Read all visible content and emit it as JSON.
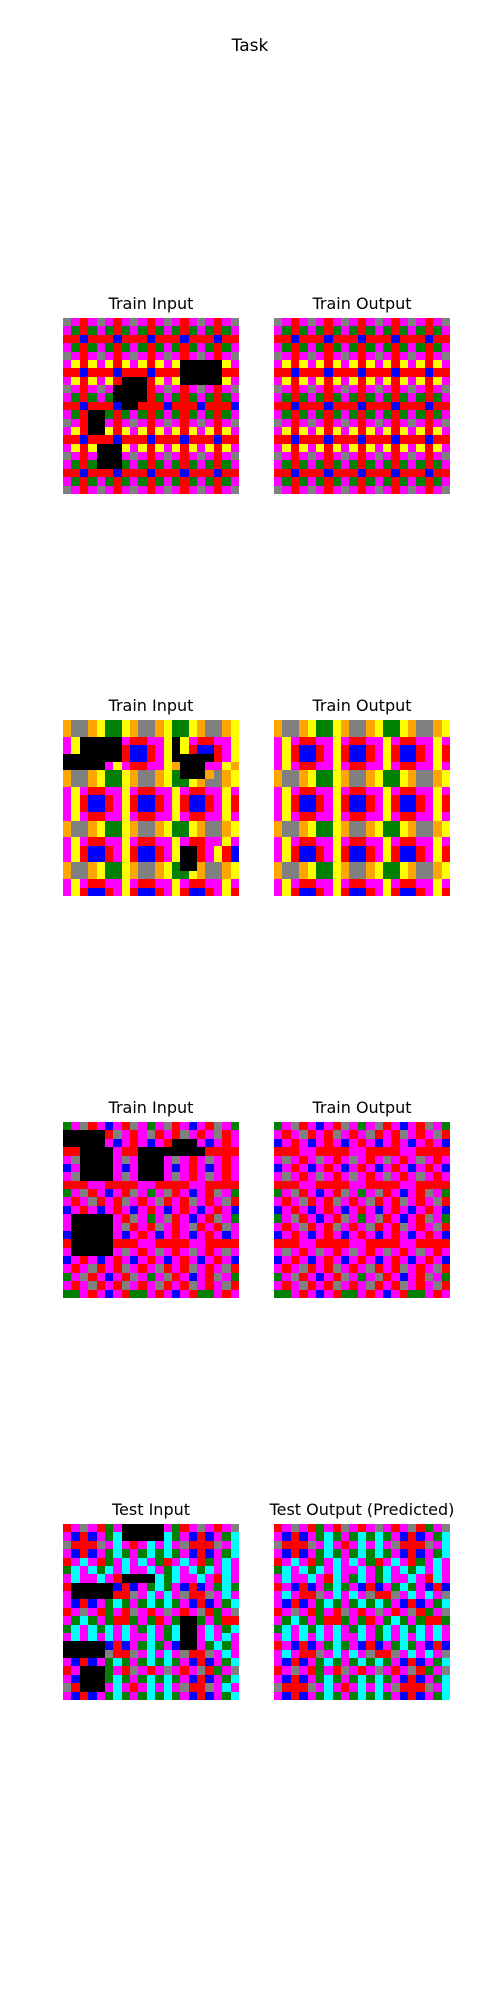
{
  "title": "Task",
  "palette": {
    "K": "#000000",
    "M": "#ff00ff",
    "R": "#ff0000",
    "G": "#008000",
    "B": "#0000ff",
    "Y": "#ffff00",
    "A": "#808080",
    "O": "#ffa500",
    "C": "#00ffff",
    "W": "#ffffff"
  },
  "panels": [
    {
      "label": "Train Input",
      "grid": [
        "AMRMAMRMAMRMAMRMAMRMA",
        "MGRGMGRGMGRGMGRGMGRGM",
        "RRBRRRBRRRBRRRBRRRBRR",
        "MGRGMGRGMGRGMGRGMGRGM",
        "AMRMAMRMAMRMAMRMAMRMA",
        "MYRYMYRYMYRYMYKKKKKYM",
        "RRBRRRBRRRBRRRKKKKKRR",
        "MYRYMYRKKKRYMYKKKKKYM",
        "AMRMAMKKKKRMAMRMAMRMA",
        "MGRGMGKKKKRGMGRGMGRGM",
        "RRBRRRBKKRRRBRRRBRRRB",
        "MGRKKGRGMGRGMGRGMGRGM",
        "AMRKKMRMAMRMAMRMAMRMA",
        "MYRKKYRYMYRYMYRYMYRYM",
        "RRBRRRBRRRBRRRBRRRBRR",
        "MYRYKKKYMYRYMYRYMYRYM",
        "AMRMKKKMAMRMAMRMAMRMA",
        "MGRGKKKGMGRGMGRGMGRGM",
        "RRBRRRBRRRBRRRBRRRBRR",
        "MGRGMGRGMGRGMGRGMGRGM",
        "AMRMAMRMAMRMAMRMAMRMA"
      ]
    },
    {
      "label": "Train Output",
      "grid": [
        "AMRMAMRMAMRMAMRMAMRMA",
        "MGRGMGRGMGRGMGRGMGRGM",
        "RRBRRRBRRRBRRRBRRRBRR",
        "MGRGMGRGMGRGMGRGMGRGM",
        "AMRMAMRMAMRMAMRMAMRMA",
        "MYRYMYRYMYRYMYRYMYRYM",
        "RRBRRRBRRRBRRRBRRRBRR",
        "MYRYMYRYMYRYMYRYMYRYM",
        "AMRMAMRMAMRMAMRMAMRMA",
        "MGRGMGRGMGRGMGRGMGRGM",
        "RRBRRRBRRRBRRRBRRRBRR",
        "MGRGMGRGMGRGMGRGMGRGM",
        "AMRMAMRMAMRMAMRMAMRMA",
        "MYRYMYRYMYRYMYRYMYRYM",
        "RRBRRRBRRRBRRRBRRRBRR",
        "MYRYMYRYMYRYMYRYMYRYM",
        "AMRMAMRMAMRMAMRMAMRMA",
        "MGRGMGRGMGRGMGRGMGRGM",
        "RRBRRRBRRRBRRRBRRRBRR",
        "MGRGMGRGMGRGMGRGMGRGM",
        "AMRMAMRMAMRMAMRMAMRMA"
      ]
    },
    {
      "label": "Train Input",
      "grid": [
        "OAAOYGGYOAAOYGGYOAAOY",
        "OAAOYGGYOAAOYGGYOAAOY",
        "MYKKKKKMRRMMYKYMRRMMY",
        "MYKKKKKRBBRMYKYRBBRMY",
        "KKKKKKKRBBRMYKKKKKRMY",
        "KKKKKMYMRRMMYOKKKMMYO",
        "OAAOYGGYOAAOYGKKKOAOY",
        "OAAOYGGYOAAOYGGYOAAOY",
        "MYMRRMMYMRRMMYMRRMMYM",
        "MYRBBRMYRBBRMYRBBRMYR",
        "MYRBBRMYRBBRMYRBBRMYR",
        "MYMRRMMYMRRMMYMRRMMYM",
        "OAAOYGGYOAAOYGGYOAAOY",
        "OAAOYGGYOAAOYGGYOAAOY",
        "MYMRRMMYMRRMMYMRRMMYM",
        "MYRBBRMYRBBRMYKKRMYRB",
        "MYRBBRMYRBBRMYKKRMYRB",
        "OAAOYGGYOAAOYGKKOAAOY",
        "OAAOYGGYOAAOYGGYOAAOY",
        "MYMRRMMYMRRMMYMRRMMYM",
        "MYRBBRMYRBBRMYRBBRMYR"
      ]
    },
    {
      "label": "Train Output",
      "grid": [
        "OAAOYGGYOAAOYGGYOAAOY",
        "OAAOYGGYOAAOYGGYOAAOY",
        "MYMRRMMYMRRMMYMRRMMYM",
        "MYRBBRMYRBBRMYRBBRMYR",
        "MYRBBRMYRBBRMYRBBRMYR",
        "MYMRRMMYMRRMMYMRRMMYM",
        "OAAOYGGYOAAOYGGYOAAOY",
        "OAAOYGGYOAAOYGGYOAAOY",
        "MYMRRMMYMRRMMYMRRMMYM",
        "MYRBBRMYRBBRMYRBBRMYR",
        "MYRBBRMYRBBRMYRBBRMYR",
        "MYMRRMMYMRRMMYMRRMMYM",
        "OAAOYGGYOAAOYGGYOAAOY",
        "OAAOYGGYOAAOYGGYOAAOY",
        "MYMRRMMYMRRMMYMRRMMYM",
        "MYRBBRMYRBBRMYRBBRMYR",
        "MYRBBRMYRBBRMYRBBRMYR",
        "OAAOYGGYOAAOYGGYOAAOY",
        "OAAOYGGYOAAOYGGYOAAOY",
        "MYMRRMMYMRRMMYMRRMMYM",
        "MYRBBRMYRBBRMYRBBRMYR"
      ]
    },
    {
      "label": "Train Input",
      "grid": [
        "GMARMBMRAMGMARMBMRAMG",
        "KKKKKRAMRMARMRAMRMARM",
        "KKKKKMBMRMBMRKKKMBMRM",
        "RRKKKKMRRKKKKKKKKRRRR",
        "MAKKKKMAMKKKMAMRMAMRM",
        "BMKKKKMBMKKKMBMRMBMRM",
        "MAKKKKMAMKKKMAMRMAMRM",
        "RRRMMRRRRMMRRRRMMRRRR",
        "GMARMBMRAMGMARMBMRAMG",
        "MRMARMRAMRMARMRAMRMAR",
        "BMRMBMRMBMRMBMRMBMRMB",
        "MKKKKKMRAMGMARMBMRAMG",
        "MKKKKKMARMRAMRMARMRAM",
        "BKKKKKMBMRMBMRMBMRMBM",
        "RKKKKKRRRMMRRRRMMRRRR",
        "MKKKKKMAMRMAMRMAMRMAM",
        "BMRMBMRMBMRMBMRMBMRMB",
        "MRMARMRAMRMARMRAMRMAR",
        "GMARMBMRAMGMARMBMRAMG",
        "MRMARMRAMRMARMRAMRMAR",
        "GGMRMBMRGGMRMBMRGGMRM"
      ]
    },
    {
      "label": "Train Output",
      "grid": [
        "GMARMBMRAMGMARMBMRAMG",
        "MRMARMRAMRMARMRAMRMAR",
        "BMRMBMRMBMRMBMRMBMRMB",
        "RRRMMRRRRMMRRRRMMRRRR",
        "MAMRMAMRMAMRMAMRMAMRM",
        "BMRMBMRMBMRMBMRMBMRMB",
        "MAMRMAMRMAMRMAMRMAMRM",
        "RRRMMRRRRMMRRRRMMRRRR",
        "GMARMBMRAMGMARMBMRAMG",
        "MRMARMRAMRMARMRAMRMAR",
        "BMRMBMRMBMRMBMRMBMRMB",
        "GMARMBMRAMGMARMBMRAMG",
        "MRMARMRAMRMARMRAMRMAR",
        "BMRMBMRMBMRMBMRMBMRMB",
        "RRRMMRRRRMMRRRRMMRRRR",
        "MAMRMAMRMAMRMAMRMAMRM",
        "BMRMBMRMBMRMBMRMBMRMB",
        "MRMARMRAMRMARMRAMRMAR",
        "GMARMBMRAMGMARMBMRAMG",
        "MRMARMRAMRMARMRAMRMAR",
        "GGMRMBMRGGMRMBMRGGMRM"
      ]
    },
    {
      "label": "Test Input",
      "grid": [
        "RMAMRGMKKKKKMGRMAMRMA",
        "MBRBMGCKKKKKCGMBRBMGC",
        "ARRRAMCMRMCMCMARRRAMC",
        "MBRBMGCGMGCGCGMBRBMGC",
        "RMCMRGMCMCMGRMCMRGMCM",
        "GCMCGCMCMMCMGCMCGCMCM",
        "MCMMCMRKKKKCGCMMCMRCM",
        "RKKKKKBRBMGCGMBRBMGCG",
        "MKKKKKRRAMCMCMARRAMCM",
        "MBRBMGCGMGCGCGMBRBMGC",
        "RMAMRGMRAMRMAMRMARGMA",
        "MGCGMGRRGMGRMGKKGMGRR",
        "GCMCGCMCMGCMGCKKMCMGC",
        "MCMCMCMCMMCMGCKKMCMCM",
        "KKKKKBRBMGCGMBKKMGCGM",
        "KKKKKARRAMCMCMARRAMCM",
        "MBRBMGCGMGCGCGMBRBMGC",
        "RMKKKGMRAMRMAMRMARGMA",
        "MBKKKGCGMGCGCGMBRBMGC",
        "ARKKKMCMRMCMCMARRAMCM",
        "MBRBMGCGMGCGCGMBRBMGC"
      ]
    },
    {
      "label": "Test Output (Predicted)",
      "grid": [
        "RMAMRGMRAMRMAMRMARGMA",
        "MBRBMGCGMGCGCGMBRBMGC",
        "ARRRAMCMRMCMCMARRRAMC",
        "MBRBMGCGMGCGCGMBRBMGC",
        "RMCMRGMCMCMGRMCMRGMCM",
        "GCMCGCMCMMCMGCMCGCMCM",
        "MCMMCMRCMGCMGCMMCMRCM",
        "RMBRBMGCGMBRBMGCGMBRB",
        "MCMRRAMCMCMARRAMCMCMA",
        "MBRBMGCGMGCGCGMBRBMGC",
        "RMAMRGMRAMRMAMRMARGMA",
        "MGCGMGRRGMGRMGCGMGRRG",
        "GCMCGCMCMGCMGCMCGCMCM",
        "MCMCMCMCMMCMGCMCMCMCM",
        "RMBRBMGCGMBRBMGCGMBRB",
        "MCMRRAMCMCMARRAMCMCMA",
        "MBRBMGCGMGCGCGMBRBMGC",
        "RMAMRGMRAMRMAMRMARGMA",
        "MBRBMGCGMGCGCGMBRBMGC",
        "ARRRAMCMRMCMCMARRRAMC",
        "MBRBMGCGMGCGCGMBRBMGC"
      ]
    }
  ]
}
